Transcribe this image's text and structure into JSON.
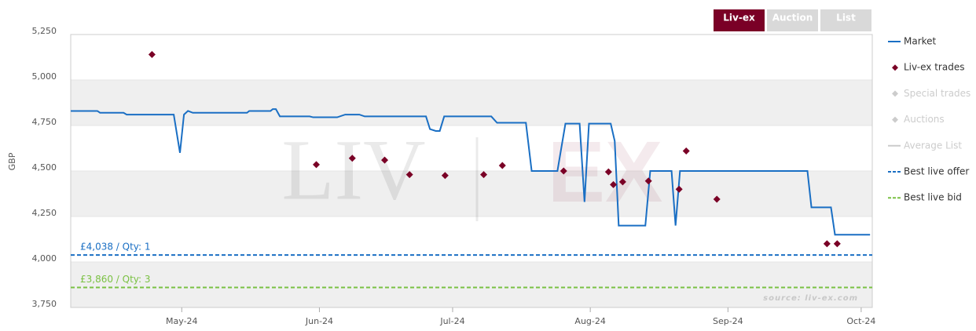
{
  "tabs": {
    "items": [
      "Liv-ex",
      "Auction",
      "List"
    ],
    "active": 0
  },
  "chart_data": {
    "type": "line",
    "y_label": "GBP",
    "source": "source: liv-ex.com",
    "watermark": [
      "LIV",
      "EX"
    ],
    "xlim": [
      96,
      276.5
    ],
    "xticks": [
      {
        "value": 121,
        "label": "May-24"
      },
      {
        "value": 152,
        "label": "Jun-24"
      },
      {
        "value": 182,
        "label": "Jul-24"
      },
      {
        "value": 213,
        "label": "Aug-24"
      },
      {
        "value": 244,
        "label": "Sep-24"
      },
      {
        "value": 274,
        "label": "Oct-24"
      }
    ],
    "ylim": [
      3750,
      5250
    ],
    "yticks": [
      {
        "value": 3750,
        "label": "3,750"
      },
      {
        "value": 4000,
        "label": "4,000"
      },
      {
        "value": 4250,
        "label": "4,250"
      },
      {
        "value": 4500,
        "label": "4,500"
      },
      {
        "value": 4750,
        "label": "4,750"
      },
      {
        "value": 5000,
        "label": "5,000"
      },
      {
        "value": 5250,
        "label": "5,250"
      }
    ],
    "grid": true,
    "series": [
      {
        "name": "Market",
        "type": "line",
        "color": "#1a6fc4",
        "visible": true,
        "x": [
          96,
          102,
          102.6,
          107.9,
          108.6,
          119.2,
          120.6,
          121.5,
          122.4,
          123.5,
          135.7,
          136.2,
          141,
          141.5,
          142.2,
          143.1,
          149.8,
          150.6,
          156,
          157.8,
          161,
          162.2,
          176,
          176.9,
          178.2,
          179.1,
          180.1,
          190.7,
          192,
          198.5,
          199.8,
          205.6,
          207.4,
          210.6,
          211.7,
          212.7,
          217.6,
          218.5,
          219.4,
          225.4,
          226.5,
          231.3,
          232.2,
          233.2,
          261.9,
          262.8,
          267.2,
          268.1,
          276
        ],
        "values": [
          4830,
          4830,
          4820,
          4820,
          4810,
          4810,
          4600,
          4810,
          4830,
          4820,
          4820,
          4830,
          4830,
          4840,
          4840,
          4800,
          4800,
          4795,
          4795,
          4810,
          4810,
          4800,
          4800,
          4730,
          4720,
          4720,
          4800,
          4800,
          4765,
          4765,
          4500,
          4500,
          4760,
          4760,
          4330,
          4760,
          4760,
          4665,
          4200,
          4200,
          4500,
          4500,
          4200,
          4500,
          4500,
          4300,
          4300,
          4150,
          4150
        ]
      },
      {
        "name": "Liv-ex trades",
        "type": "scatter",
        "color": "#7a0026",
        "visible": true,
        "x": [
          114.3,
          151.3,
          159.4,
          166.7,
          172.3,
          180.3,
          189,
          193.2,
          207,
          217.1,
          218.2,
          220.3,
          226.1,
          233,
          234.6,
          241.5,
          266.3,
          268.6
        ],
        "values": [
          5140,
          4535,
          4570,
          4560,
          4480,
          4475,
          4480,
          4530,
          4500,
          4495,
          4425,
          4440,
          4445,
          4400,
          4610,
          4345,
          4100,
          4100
        ]
      },
      {
        "name": "Special trades",
        "type": "scatter",
        "color": "#cccccc",
        "visible": false
      },
      {
        "name": "Auctions",
        "type": "scatter",
        "color": "#cccccc",
        "visible": false
      },
      {
        "name": "Average List",
        "type": "line",
        "color": "#cccccc",
        "visible": false
      },
      {
        "name": "Best live offer",
        "type": "hline",
        "color": "#1a6fc4",
        "visible": true,
        "value": 4038,
        "label": "£4,038 / Qty: 1"
      },
      {
        "name": "Best live bid",
        "type": "hline",
        "color": "#7ac143",
        "visible": true,
        "value": 3860,
        "label": "£3,860 / Qty: 3"
      }
    ]
  }
}
